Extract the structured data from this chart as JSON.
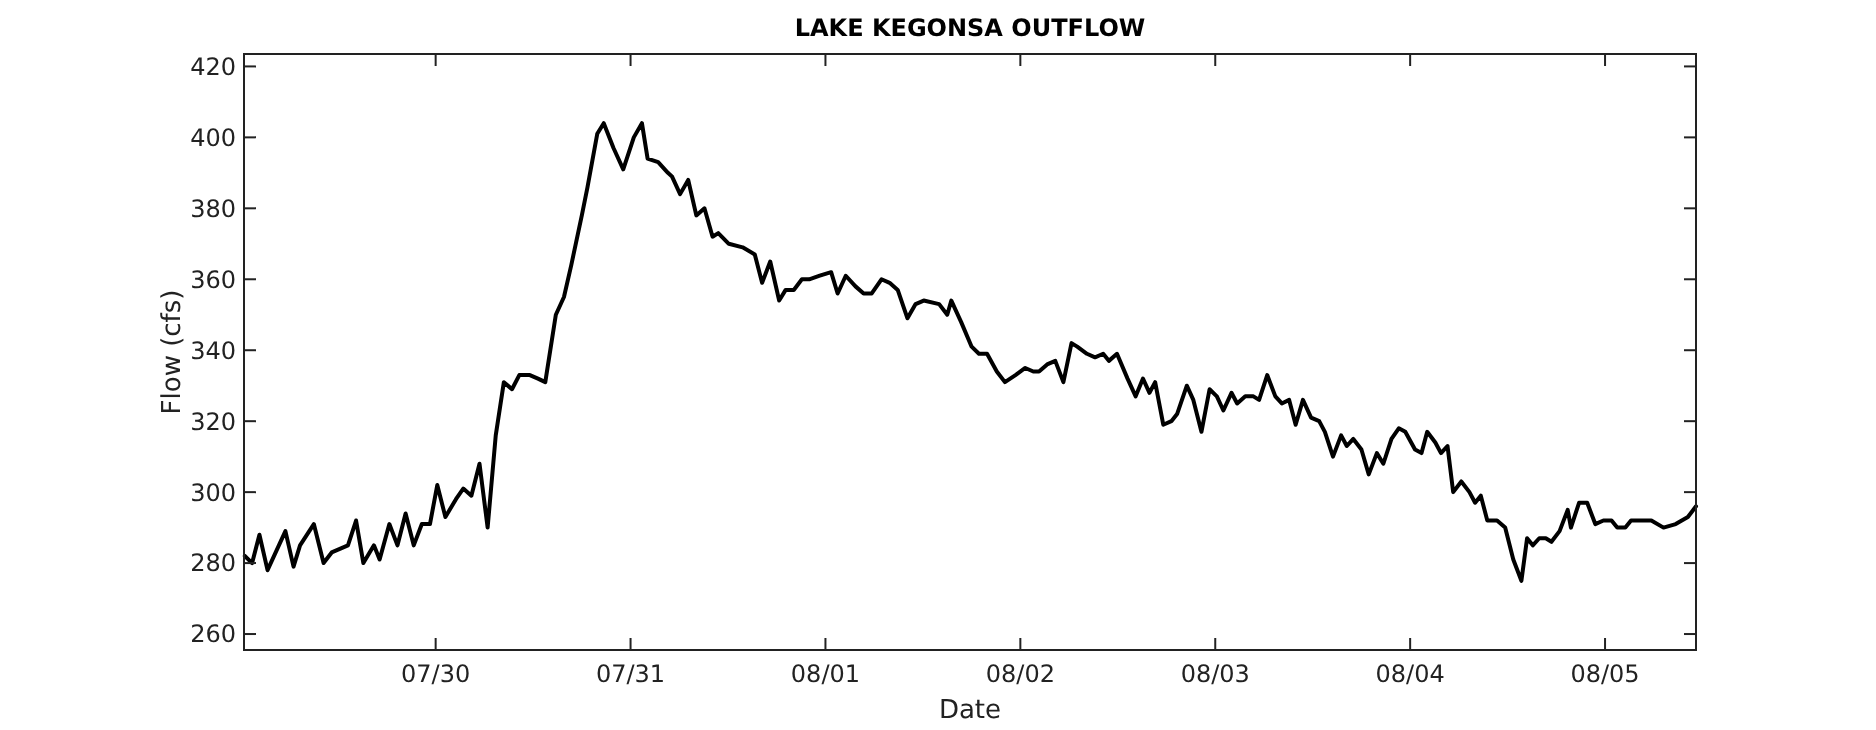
{
  "chart_data": {
    "type": "line",
    "title": "LAKE KEGONSA OUTFLOW",
    "xlabel": "Date",
    "ylabel": "Flow (cfs)",
    "x": [
      "--07-29T00:30",
      "--07-29T01:24",
      "--07-29T02:18",
      "--07-29T03:18",
      "--07-29T05:30",
      "--07-29T06:30",
      "--07-29T07:18",
      "--07-29T09:00",
      "--07-29T10:12",
      "--07-29T11:12",
      "--07-29T13:12",
      "--07-29T14:12",
      "--07-29T15:06",
      "--07-29T16:24",
      "--07-29T17:06",
      "--07-29T18:18",
      "--07-29T19:18",
      "--07-29T20:18",
      "--07-29T21:18",
      "--07-29T22:18",
      "--07-29T23:18",
      "--07-30T00:12",
      "--07-30T01:12",
      "--07-30T02:30",
      "--07-30T03:24",
      "--07-30T04:24",
      "--07-30T05:24",
      "--07-30T06:24",
      "--07-30T07:24",
      "--07-30T08:24",
      "--07-30T09:24",
      "--07-30T10:18",
      "--07-30T11:36",
      "--07-30T12:36",
      "--07-30T13:30",
      "--07-30T14:48",
      "--07-30T15:48",
      "--07-30T16:42",
      "--07-30T18:00",
      "--07-30T18:42",
      "--07-30T19:54",
      "--07-30T20:42",
      "--07-30T21:54",
      "--07-30T23:06",
      "--07-31T00:24",
      "--07-31T01:24",
      "--07-31T02:06",
      "--07-31T03:24",
      "--07-31T04:36",
      "--07-31T05:06",
      "--07-31T06:06",
      "--07-31T07:06",
      "--07-31T08:06",
      "--07-31T09:06",
      "--07-31T10:06",
      "--07-31T10:48",
      "--07-31T12:06",
      "--07-31T13:48",
      "--07-31T15:18",
      "--07-31T16:12",
      "--07-31T17:12",
      "--07-31T18:18",
      "--07-31T19:06",
      "--07-31T20:06",
      "--07-31T21:06",
      "--07-31T22:00",
      "--07-31T23:18",
      "--08-01T00:42",
      "--08-01T01:30",
      "--08-01T02:30",
      "--08-01T03:42",
      "--08-01T04:42",
      "--08-01T05:42",
      "--08-01T06:54",
      "--08-01T07:54",
      "--08-01T08:54",
      "--08-01T10:06",
      "--08-01T11:06",
      "--08-01T12:06",
      "--08-01T14:00",
      "--08-01T15:00",
      "--08-01T15:30",
      "--08-01T16:42",
      "--08-01T18:00",
      "--08-01T18:54",
      "--08-01T19:54",
      "--08-01T21:06",
      "--08-01T22:06",
      "--08-01T23:24",
      "--08-02T00:36",
      "--08-02T01:36",
      "--08-02T02:18",
      "--08-02T03:18",
      "--08-02T04:18",
      "--08-02T05:18",
      "--08-02T06:18",
      "--08-02T07:00",
      "--08-02T08:12",
      "--08-02T09:12",
      "--08-02T10:12",
      "--08-02T10:54",
      "--08-02T11:54",
      "--08-02T13:12",
      "--08-02T14:12",
      "--08-02T15:06",
      "--08-02T15:54",
      "--08-02T16:36",
      "--08-02T17:36",
      "--08-02T18:36",
      "--08-02T19:18",
      "--08-02T20:30",
      "--08-02T21:18",
      "--08-02T22:18",
      "--08-02T23:18",
      "--08-03T00:12",
      "--08-03T01:00",
      "--08-03T02:00",
      "--08-03T02:42",
      "--08-03T03:42",
      "--08-03T04:42",
      "--08-03T05:24",
      "--08-03T06:24",
      "--08-03T07:24",
      "--08-03T08:12",
      "--08-03T09:06",
      "--08-03T09:54",
      "--08-03T10:48",
      "--08-03T11:48",
      "--08-03T12:48",
      "--08-03T13:30",
      "--08-03T14:30",
      "--08-03T15:30",
      "--08-03T16:12",
      "--08-03T17:00",
      "--08-03T18:00",
      "--08-03T18:54",
      "--08-03T19:54",
      "--08-03T20:42",
      "--08-03T21:42",
      "--08-03T22:36",
      "--08-03T23:24",
      "--08-04T00:36",
      "--08-04T01:24",
      "--08-04T02:06",
      "--08-04T03:06",
      "--08-04T03:48",
      "--08-04T04:36",
      "--08-04T05:18",
      "--08-04T06:18",
      "--08-04T07:18",
      "--08-04T08:00",
      "--08-04T08:42",
      "--08-04T09:30",
      "--08-04T10:42",
      "--08-04T11:42",
      "--08-04T12:42",
      "--08-04T13:42",
      "--08-04T14:24",
      "--08-04T15:06",
      "--08-04T15:54",
      "--08-04T16:42",
      "--08-04T17:24",
      "--08-04T18:24",
      "--08-04T19:24",
      "--08-04T19:48",
      "--08-04T20:48",
      "--08-04T21:48",
      "--08-04T22:48",
      "--08-04T23:48",
      "--08-05T00:48",
      "--08-05T01:30",
      "--08-05T02:30",
      "--08-05T03:12",
      "--08-05T04:12",
      "--08-05T05:42",
      "--08-05T07:12",
      "--08-05T08:42",
      "--08-05T10:12",
      "--08-05T11:12"
    ],
    "series": [
      {
        "color": "#000000",
        "values": [
          282,
          280,
          288,
          278,
          289,
          279,
          285,
          291,
          280,
          283,
          285,
          292,
          280,
          285,
          281,
          291,
          285,
          294,
          285,
          291,
          291,
          302,
          293,
          298,
          301,
          299,
          308,
          290,
          316,
          331,
          329,
          333,
          333,
          332,
          331,
          350,
          355,
          364,
          378,
          386,
          401,
          404,
          397,
          391,
          400,
          404,
          394,
          393,
          390,
          389,
          384,
          388,
          378,
          380,
          372,
          373,
          370,
          369,
          367,
          359,
          365,
          354,
          357,
          357,
          360,
          360,
          361,
          362,
          356,
          361,
          358,
          356,
          356,
          360,
          359,
          357,
          349,
          353,
          354,
          353,
          350,
          354,
          348,
          341,
          339,
          339,
          334,
          331,
          333,
          335,
          334,
          334,
          336,
          337,
          331,
          342,
          341,
          339,
          338,
          339,
          337,
          339,
          332,
          327,
          332,
          328,
          331,
          319,
          320,
          322,
          330,
          326,
          317,
          329,
          327,
          323,
          328,
          325,
          327,
          327,
          326,
          333,
          327,
          325,
          326,
          319,
          326,
          321,
          320,
          317,
          310,
          316,
          313,
          315,
          312,
          305,
          311,
          308,
          315,
          318,
          317,
          312,
          311,
          317,
          314,
          311,
          313,
          300,
          303,
          300,
          297,
          299,
          292,
          292,
          290,
          281,
          275,
          287,
          285,
          287,
          287,
          286,
          289,
          295,
          290,
          297,
          297,
          291,
          292,
          292,
          290,
          290,
          292,
          292,
          292,
          290,
          291,
          293,
          296
        ]
      }
    ],
    "xlim": [
      "--07-29T00:24",
      "--08-05T11:12"
    ],
    "xticks": [
      {
        "value": "--07-30",
        "label": "07/30"
      },
      {
        "value": "--07-31",
        "label": "07/31"
      },
      {
        "value": "--08-01",
        "label": "08/01"
      },
      {
        "value": "--08-02",
        "label": "08/02"
      },
      {
        "value": "--08-03",
        "label": "08/03"
      },
      {
        "value": "--08-04",
        "label": "08/04"
      },
      {
        "value": "--08-05",
        "label": "08/05"
      }
    ],
    "ylim": [
      255.5,
      423.5
    ],
    "yticks": [
      260,
      280,
      300,
      320,
      340,
      360,
      380,
      400,
      420
    ],
    "grid": false,
    "marker": "none",
    "line_style": "solid"
  }
}
